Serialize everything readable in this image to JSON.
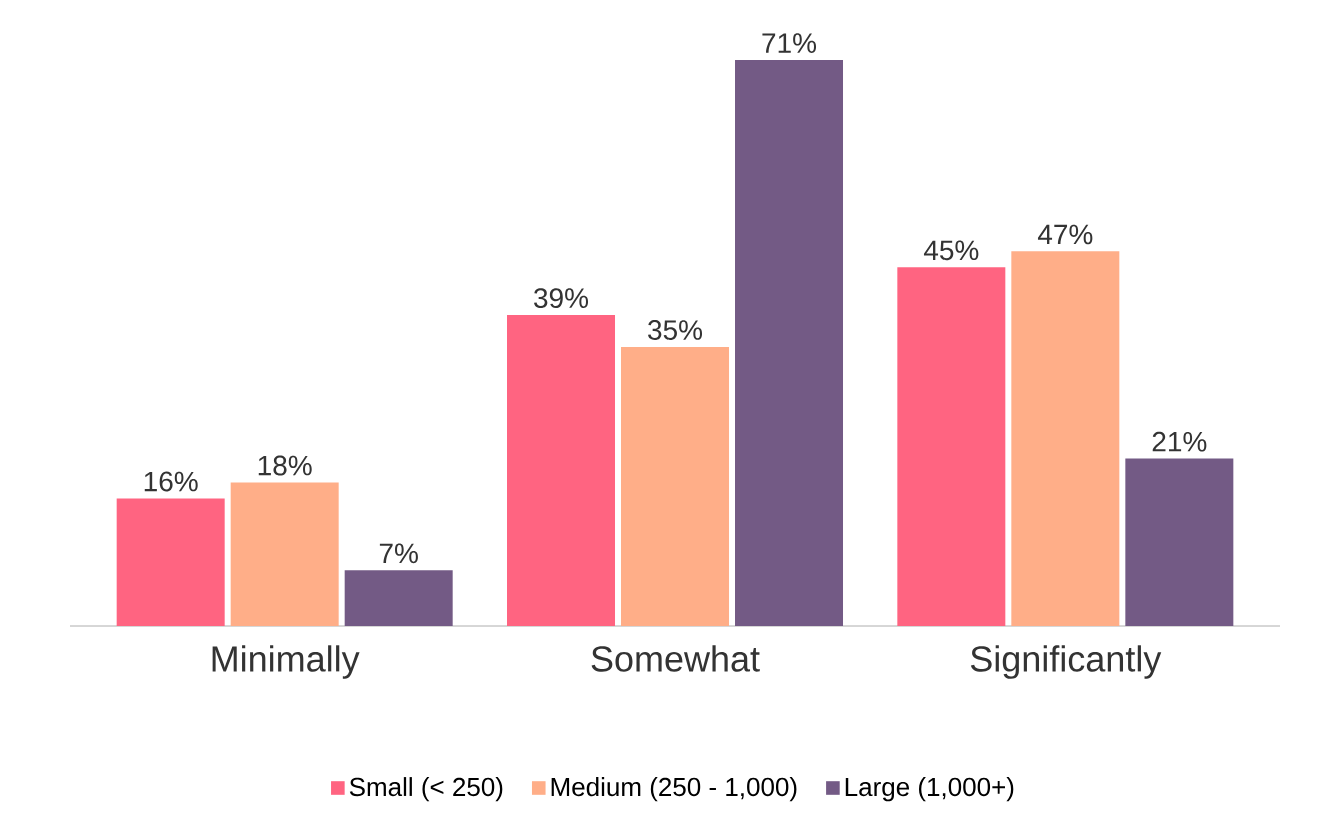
{
  "chart_data": {
    "type": "bar",
    "categories": [
      "Minimally",
      "Somewhat",
      "Significantly"
    ],
    "series": [
      {
        "name": "Small (< 250)",
        "color": "#ff6481",
        "values": [
          16,
          39,
          45
        ],
        "value_labels": [
          "16%",
          "39%",
          "45%"
        ]
      },
      {
        "name": "Medium (250 - 1,000)",
        "color": "#ffae88",
        "values": [
          18,
          35,
          47
        ],
        "value_labels": [
          "18%",
          "35%",
          "47%"
        ]
      },
      {
        "name": "Large (1,000+)",
        "color": "#735a85",
        "values": [
          7,
          71,
          21
        ],
        "value_labels": [
          "7%",
          "71%",
          "21%"
        ]
      }
    ],
    "legend": "bottom"
  }
}
